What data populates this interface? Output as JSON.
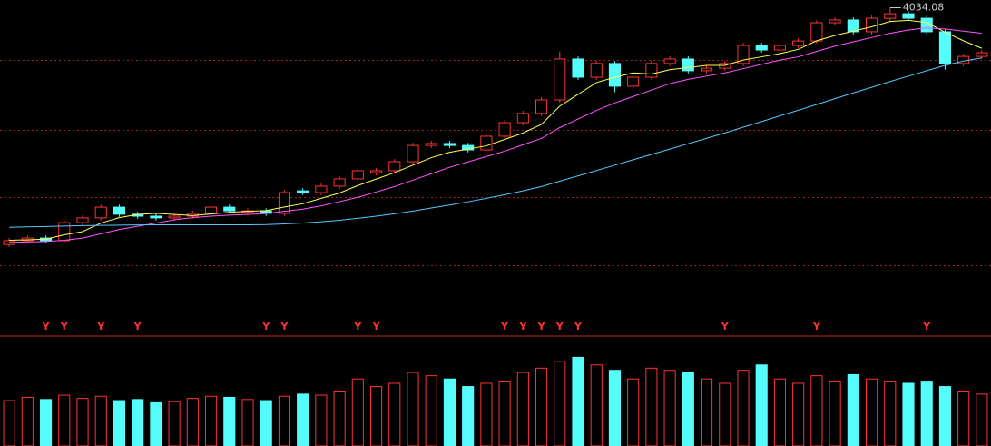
{
  "chart_data": {
    "type": "candlestick",
    "open": [
      2930,
      2948,
      2960,
      2948,
      3032,
      3054,
      3104,
      3071,
      3062,
      3054,
      3062,
      3075,
      3104,
      3080,
      3087,
      3075,
      3180,
      3172,
      3202,
      3236,
      3265,
      3274,
      3316,
      3392,
      3401,
      3392,
      3371,
      3435,
      3498,
      3541,
      3604,
      3795,
      3710,
      3774,
      3668,
      3710,
      3774,
      3795,
      3740,
      3752,
      3774,
      3858,
      3837,
      3858,
      3879,
      3964,
      3977,
      3922,
      3985,
      4006,
      3985,
      3922,
      3774,
      3807
    ],
    "high": [
      2960,
      2972,
      2972,
      3044,
      3066,
      3116,
      3116,
      3083,
      3074,
      3074,
      3087,
      3116,
      3116,
      3099,
      3099,
      3184,
      3192,
      3214,
      3248,
      3286,
      3286,
      3328,
      3404,
      3413,
      3413,
      3404,
      3447,
      3510,
      3553,
      3616,
      3830,
      3807,
      3786,
      3786,
      3722,
      3786,
      3807,
      3807,
      3764,
      3786,
      3870,
      3870,
      3870,
      3891,
      3976,
      3989,
      3989,
      3997,
      4034.08,
      4018,
      3997,
      3934,
      3819,
      3836
    ],
    "low": [
      2918,
      2936,
      2936,
      2936,
      3020,
      3042,
      3059,
      3050,
      3042,
      3042,
      3050,
      3063,
      3075,
      3068,
      3063,
      3063,
      3160,
      3160,
      3190,
      3224,
      3253,
      3262,
      3304,
      3380,
      3380,
      3359,
      3359,
      3423,
      3486,
      3529,
      3592,
      3698,
      3698,
      3640,
      3656,
      3698,
      3762,
      3728,
      3728,
      3740,
      3762,
      3825,
      3825,
      3846,
      3867,
      3952,
      3910,
      3910,
      3973,
      3973,
      3910,
      3745,
      3762,
      3795
    ],
    "close": [
      2948,
      2960,
      2948,
      3032,
      3054,
      3104,
      3071,
      3062,
      3054,
      3062,
      3075,
      3104,
      3087,
      3087,
      3075,
      3172,
      3172,
      3202,
      3236,
      3274,
      3274,
      3316,
      3392,
      3401,
      3392,
      3371,
      3435,
      3498,
      3541,
      3604,
      3795,
      3710,
      3774,
      3668,
      3710,
      3774,
      3795,
      3740,
      3752,
      3774,
      3858,
      3837,
      3858,
      3879,
      3964,
      3977,
      3922,
      3985,
      4006,
      3985,
      3922,
      3774,
      3807,
      3824
    ],
    "volume": [
      42,
      45,
      43,
      47,
      44,
      46,
      42,
      43,
      40,
      41,
      44,
      46,
      45,
      43,
      42,
      46,
      48,
      47,
      50,
      62,
      55,
      58,
      68,
      65,
      62,
      55,
      58,
      60,
      68,
      72,
      78,
      82,
      75,
      70,
      62,
      72,
      70,
      68,
      62,
      58,
      70,
      75,
      62,
      58,
      65,
      60,
      66,
      62,
      60,
      58,
      60,
      55,
      50,
      48
    ],
    "ma": [
      {
        "color": "#ffff54",
        "values": [
          2950,
          2952,
          2955,
          2975,
          2990,
          3030,
          3055,
          3070,
          3075,
          3070,
          3065,
          3072,
          3080,
          3085,
          3088,
          3105,
          3120,
          3145,
          3170,
          3205,
          3235,
          3265,
          3300,
          3335,
          3360,
          3375,
          3390,
          3420,
          3450,
          3490,
          3575,
          3630,
          3685,
          3710,
          3730,
          3725,
          3745,
          3755,
          3765,
          3765,
          3790,
          3805,
          3820,
          3840,
          3880,
          3905,
          3925,
          3945,
          3970,
          3975,
          3965,
          3920,
          3880,
          3845
        ]
      },
      {
        "color": "#ff54ff",
        "values": [
          2940,
          2942,
          2944,
          2950,
          2960,
          2980,
          3000,
          3015,
          3030,
          3045,
          3055,
          3062,
          3067,
          3070,
          3074,
          3085,
          3095,
          3110,
          3130,
          3150,
          3175,
          3200,
          3230,
          3260,
          3290,
          3315,
          3340,
          3365,
          3395,
          3425,
          3475,
          3515,
          3555,
          3590,
          3620,
          3650,
          3680,
          3700,
          3715,
          3730,
          3750,
          3770,
          3790,
          3805,
          3830,
          3855,
          3875,
          3895,
          3915,
          3930,
          3940,
          3935,
          3925,
          3915
        ]
      },
      {
        "color": "#54c8ff",
        "values": [
          3010,
          3012,
          3014,
          3016,
          3018,
          3019,
          3020,
          3021,
          3022,
          3022,
          3022,
          3022,
          3022,
          3022,
          3023,
          3026,
          3030,
          3036,
          3043,
          3052,
          3062,
          3073,
          3086,
          3100,
          3114,
          3129,
          3145,
          3162,
          3180,
          3200,
          3225,
          3250,
          3275,
          3300,
          3325,
          3350,
          3375,
          3400,
          3425,
          3450,
          3477,
          3503,
          3530,
          3556,
          3583,
          3610,
          3637,
          3663,
          3690,
          3715,
          3740,
          3765,
          3785,
          3800
        ]
      }
    ],
    "signals": [
      null,
      null,
      "Y",
      "Y",
      null,
      "Y",
      null,
      "Y",
      null,
      null,
      null,
      null,
      null,
      null,
      "Y",
      "Y",
      null,
      null,
      null,
      "Y",
      "Y",
      null,
      null,
      null,
      null,
      null,
      null,
      "Y",
      "Y",
      "Y",
      "Y",
      "Y",
      null,
      null,
      null,
      null,
      null,
      null,
      null,
      "Y",
      null,
      null,
      null,
      null,
      "Y",
      null,
      null,
      null,
      null,
      null,
      "Y",
      null,
      null,
      null
    ],
    "up_color": "#ff3232",
    "down_color": "#54fcfc",
    "signal_color": "#ff3232",
    "ylim": [
      2630,
      4070
    ],
    "yticks": [
      2833,
      3151,
      3464,
      3790
    ],
    "grid": true,
    "volume_ylim": [
      0,
      100
    ]
  }
}
